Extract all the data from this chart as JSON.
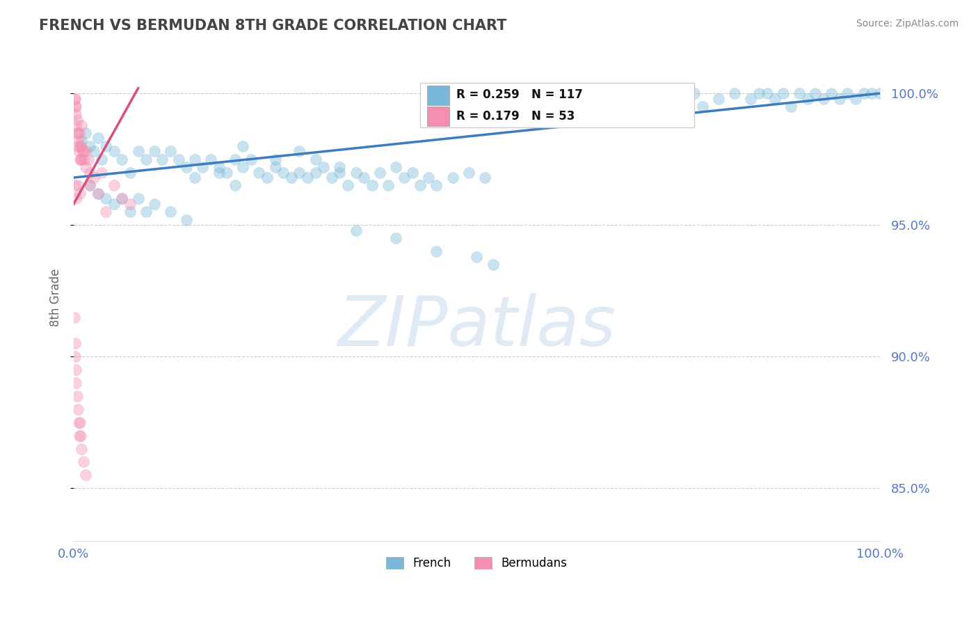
{
  "title": "FRENCH VS BERMUDAN 8TH GRADE CORRELATION CHART",
  "source": "Source: ZipAtlas.com",
  "ylabel": "8th Grade",
  "xlim": [
    0,
    100
  ],
  "ylim": [
    83,
    101.5
  ],
  "background_color": "#ffffff",
  "watermark": "ZIPatlas",
  "french_color": "#7ab8d9",
  "bermudan_color": "#f48fb1",
  "french_line_color": "#3c7cbf",
  "bermudan_line_color": "#d94f7c",
  "yticks": [
    85.0,
    90.0,
    95.0,
    100.0
  ],
  "ytick_labels": [
    "85.0%",
    "90.0%",
    "95.0%",
    "100.0%"
  ],
  "xticks": [
    0,
    100
  ],
  "xtick_labels": [
    "0.0%",
    "100.0%"
  ],
  "french_line_x0": 0,
  "french_line_x1": 100,
  "french_line_y0": 96.8,
  "french_line_y1": 100.0,
  "bermudan_line_x0": 0.0,
  "bermudan_line_x1": 8.0,
  "bermudan_line_y0": 95.8,
  "bermudan_line_y1": 100.2,
  "marker_size": 130,
  "marker_alpha": 0.4,
  "line_width": 2.5,
  "dashed_line_color": "#cccccc",
  "title_color": "#444444",
  "tick_color": "#5577cc",
  "source_color": "#888888",
  "french_x": [
    1.0,
    1.5,
    2.0,
    2.5,
    3.0,
    3.5,
    4.0,
    5.0,
    6.0,
    7.0,
    8.0,
    9.0,
    10.0,
    11.0,
    12.0,
    13.0,
    14.0,
    15.0,
    16.0,
    17.0,
    18.0,
    19.0,
    20.0,
    21.0,
    22.0,
    23.0,
    24.0,
    25.0,
    26.0,
    27.0,
    28.0,
    29.0,
    30.0,
    31.0,
    32.0,
    33.0,
    34.0,
    35.0,
    36.0,
    37.0,
    38.0,
    39.0,
    40.0,
    41.0,
    42.0,
    43.0,
    44.0,
    45.0,
    47.0,
    49.0,
    51.0,
    2.0,
    3.0,
    4.0,
    5.0,
    6.0,
    7.0,
    8.0,
    9.0,
    10.0,
    12.0,
    14.0,
    60.0,
    61.0,
    62.0,
    63.0,
    65.0,
    66.0,
    67.0,
    68.0,
    70.0,
    71.0,
    72.0,
    73.0,
    75.0,
    76.0,
    77.0,
    78.0,
    80.0,
    82.0,
    84.0,
    85.0,
    86.0,
    87.0,
    88.0,
    89.0,
    90.0,
    91.0,
    92.0,
    93.0,
    94.0,
    95.0,
    96.0,
    97.0,
    98.0,
    99.0,
    100.0,
    35.0,
    40.0,
    45.0,
    50.0,
    52.0,
    21.0,
    25.0,
    28.0,
    30.0,
    33.0,
    15.0,
    18.0,
    20.0
  ],
  "french_y": [
    98.2,
    98.5,
    98.0,
    97.8,
    98.3,
    97.5,
    98.0,
    97.8,
    97.5,
    97.0,
    97.8,
    97.5,
    97.8,
    97.5,
    97.8,
    97.5,
    97.2,
    97.5,
    97.2,
    97.5,
    97.2,
    97.0,
    97.5,
    97.2,
    97.5,
    97.0,
    96.8,
    97.2,
    97.0,
    96.8,
    97.0,
    96.8,
    97.0,
    97.2,
    96.8,
    97.0,
    96.5,
    97.0,
    96.8,
    96.5,
    97.0,
    96.5,
    97.2,
    96.8,
    97.0,
    96.5,
    96.8,
    96.5,
    96.8,
    97.0,
    96.8,
    96.5,
    96.2,
    96.0,
    95.8,
    96.0,
    95.5,
    96.0,
    95.5,
    95.8,
    95.5,
    95.2,
    99.5,
    99.8,
    100.0,
    99.5,
    99.8,
    100.0,
    99.5,
    100.0,
    99.8,
    100.0,
    100.0,
    99.5,
    100.0,
    99.8,
    100.0,
    99.5,
    99.8,
    100.0,
    99.8,
    100.0,
    100.0,
    99.8,
    100.0,
    99.5,
    100.0,
    99.8,
    100.0,
    99.8,
    100.0,
    99.8,
    100.0,
    99.8,
    100.0,
    100.0,
    100.0,
    94.8,
    94.5,
    94.0,
    93.8,
    93.5,
    98.0,
    97.5,
    97.8,
    97.5,
    97.2,
    96.8,
    97.0,
    96.5
  ],
  "bermudan_x": [
    0.1,
    0.15,
    0.2,
    0.25,
    0.3,
    0.3,
    0.4,
    0.45,
    0.5,
    0.5,
    0.6,
    0.65,
    0.7,
    0.75,
    0.8,
    0.85,
    0.9,
    1.0,
    1.0,
    1.1,
    1.2,
    1.3,
    1.5,
    1.5,
    1.8,
    2.0,
    2.0,
    2.5,
    3.0,
    3.5,
    4.0,
    5.0,
    6.0,
    7.0,
    0.2,
    0.3,
    0.5,
    0.8,
    0.1,
    0.15,
    0.2,
    0.25,
    0.3,
    0.4,
    0.5,
    0.6,
    0.7,
    0.8,
    0.9,
    1.0,
    1.2,
    1.5
  ],
  "bermudan_y": [
    99.8,
    99.5,
    99.8,
    99.5,
    99.2,
    98.8,
    98.5,
    99.0,
    98.5,
    98.0,
    98.2,
    97.8,
    98.5,
    98.0,
    97.5,
    98.0,
    97.5,
    98.8,
    97.5,
    97.8,
    97.8,
    97.5,
    97.8,
    97.2,
    97.5,
    97.0,
    96.5,
    96.8,
    96.2,
    97.0,
    95.5,
    96.5,
    96.0,
    95.8,
    96.5,
    96.0,
    96.5,
    96.2,
    91.5,
    90.5,
    90.0,
    89.5,
    89.0,
    88.5,
    88.0,
    87.5,
    87.0,
    87.5,
    87.0,
    86.5,
    86.0,
    85.5
  ]
}
